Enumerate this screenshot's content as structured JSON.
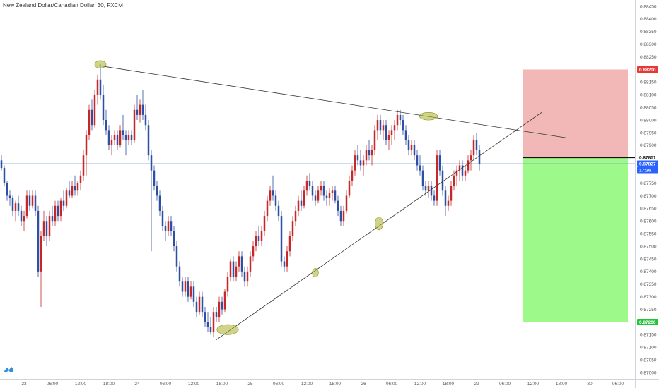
{
  "chart_data": {
    "type": "candlestick",
    "title": "New Zealand Dollar/Canadian Dollar, 30, FXCM",
    "y_axis": {
      "ticks": [
        "0.88450",
        "0.88400",
        "0.88350",
        "0.88300",
        "0.88250",
        "0.88150",
        "0.88100",
        "0.88050",
        "0.88000",
        "0.87950",
        "0.87900",
        "0.87750",
        "0.87700",
        "0.87650",
        "0.87600",
        "0.87550",
        "0.87500",
        "0.87450",
        "0.87400",
        "0.87350",
        "0.87300",
        "0.87250",
        "0.87150",
        "0.87100",
        "0.87050",
        "0.87000"
      ],
      "ylim": [
        0.86975,
        0.88475
      ]
    },
    "x_axis": {
      "ticks": [
        {
          "i": 8,
          "label": "23"
        },
        {
          "i": 18,
          "label": "06:00"
        },
        {
          "i": 28,
          "label": "12:00"
        },
        {
          "i": 38,
          "label": "18:00"
        },
        {
          "i": 48,
          "label": "24"
        },
        {
          "i": 58,
          "label": "06:00"
        },
        {
          "i": 68,
          "label": "12:00"
        },
        {
          "i": 78,
          "label": "18:00"
        },
        {
          "i": 88,
          "label": "25"
        },
        {
          "i": 98,
          "label": "06:00"
        },
        {
          "i": 108,
          "label": "12:00"
        },
        {
          "i": 118,
          "label": "18:00"
        },
        {
          "i": 128,
          "label": "26"
        },
        {
          "i": 138,
          "label": "06:00"
        },
        {
          "i": 148,
          "label": "12:00"
        },
        {
          "i": 158,
          "label": "18:00"
        },
        {
          "i": 168,
          "label": "29"
        },
        {
          "i": 178,
          "label": "06:00"
        },
        {
          "i": 188,
          "label": "12:00"
        },
        {
          "i": 198,
          "label": "18:00"
        },
        {
          "i": 208,
          "label": "30"
        },
        {
          "i": 218,
          "label": "06:00"
        }
      ],
      "xlim": [
        -0.5,
        224
      ]
    },
    "colors": {
      "up": "#c62828",
      "down": "#2e4fa3"
    },
    "last_price": {
      "label": "0.87851",
      "value": 0.87851
    },
    "current_price": {
      "label": "0.87827",
      "value": 0.87827
    },
    "countdown": {
      "label": "17:36"
    },
    "stop_level": {
      "label": "0.88200",
      "value": 0.882,
      "color": "#e53935"
    },
    "target_level": {
      "label": "0.87200",
      "value": 0.872,
      "color": "#22c53a"
    },
    "risk_reward": {
      "x_range": [
        184.5,
        221.5
      ],
      "entry": 0.87851,
      "stop": 0.882,
      "target": 0.872,
      "stop_color": "#f2b8b8",
      "target_color": "#9dfa8a"
    },
    "trendlines": [
      {
        "from": [
          34.5,
          0.88215
        ],
        "to": [
          199.5,
          0.8793
        ],
        "color": "#333333"
      },
      {
        "from": [
          76,
          0.8713
        ],
        "to": [
          191,
          0.8803
        ],
        "color": "#333333"
      }
    ],
    "highlights": [
      {
        "at": [
          35,
          0.8822
        ],
        "rx": 2.0,
        "ry": 0.00015
      },
      {
        "at": [
          151,
          0.88015
        ],
        "rx": 3.2,
        "ry": 0.00015
      },
      {
        "at": [
          133.5,
          0.8759
        ],
        "rx": 1.4,
        "ry": 0.00025
      },
      {
        "at": [
          111,
          0.87395
        ],
        "rx": 1.1,
        "ry": 0.00017
      },
      {
        "at": [
          80,
          0.8717
        ],
        "rx": 3.8,
        "ry": 0.0002
      }
    ],
    "candles": [
      [
        0.8784,
        0.8786,
        0.878,
        0.8781
      ],
      [
        0.8781,
        0.8782,
        0.8774,
        0.8775
      ],
      [
        0.8775,
        0.8776,
        0.8768,
        0.877
      ],
      [
        0.877,
        0.8772,
        0.8766,
        0.8769
      ],
      [
        0.8769,
        0.877,
        0.8762,
        0.8764
      ],
      [
        0.8764,
        0.8768,
        0.876,
        0.8767
      ],
      [
        0.8767,
        0.877,
        0.8762,
        0.8764
      ],
      [
        0.8764,
        0.8766,
        0.8758,
        0.876
      ],
      [
        0.876,
        0.8764,
        0.8756,
        0.8762
      ],
      [
        0.8762,
        0.8772,
        0.8761,
        0.877
      ],
      [
        0.877,
        0.8772,
        0.8764,
        0.8766
      ],
      [
        0.8766,
        0.8772,
        0.8765,
        0.877
      ],
      [
        0.877,
        0.8772,
        0.8762,
        0.8764
      ],
      [
        0.8764,
        0.8766,
        0.8738,
        0.874
      ],
      [
        0.874,
        0.8756,
        0.8726,
        0.8754
      ],
      [
        0.8754,
        0.8764,
        0.8752,
        0.876
      ],
      [
        0.876,
        0.8762,
        0.875,
        0.8754
      ],
      [
        0.8754,
        0.8764,
        0.8752,
        0.8762
      ],
      [
        0.8762,
        0.8766,
        0.8758,
        0.876
      ],
      [
        0.876,
        0.8768,
        0.8758,
        0.8766
      ],
      [
        0.8766,
        0.8768,
        0.876,
        0.8762
      ],
      [
        0.8762,
        0.8769,
        0.876,
        0.8768
      ],
      [
        0.8768,
        0.8772,
        0.8764,
        0.8766
      ],
      [
        0.8766,
        0.8773,
        0.8765,
        0.8772
      ],
      [
        0.8772,
        0.8776,
        0.8769,
        0.877
      ],
      [
        0.877,
        0.8776,
        0.8769,
        0.8774
      ],
      [
        0.8774,
        0.8778,
        0.877,
        0.8772
      ],
      [
        0.8772,
        0.8776,
        0.877,
        0.8775
      ],
      [
        0.8775,
        0.878,
        0.8772,
        0.8778
      ],
      [
        0.8778,
        0.8788,
        0.8776,
        0.8786
      ],
      [
        0.8786,
        0.8796,
        0.8778,
        0.8794
      ],
      [
        0.8794,
        0.8806,
        0.8792,
        0.8804
      ],
      [
        0.8804,
        0.8808,
        0.8796,
        0.8798
      ],
      [
        0.8798,
        0.8812,
        0.8797,
        0.881
      ],
      [
        0.881,
        0.8818,
        0.8806,
        0.8816
      ],
      [
        0.8816,
        0.8822,
        0.8808,
        0.881
      ],
      [
        0.881,
        0.8814,
        0.8798,
        0.88
      ],
      [
        0.88,
        0.8804,
        0.8794,
        0.8796
      ],
      [
        0.8796,
        0.8798,
        0.8788,
        0.879
      ],
      [
        0.879,
        0.8794,
        0.8786,
        0.8792
      ],
      [
        0.8792,
        0.8796,
        0.879,
        0.8794
      ],
      [
        0.8794,
        0.8796,
        0.8788,
        0.879
      ],
      [
        0.879,
        0.8798,
        0.8789,
        0.8796
      ],
      [
        0.8796,
        0.8802,
        0.8792,
        0.8794
      ],
      [
        0.8794,
        0.8796,
        0.8786,
        0.8792
      ],
      [
        0.8792,
        0.8796,
        0.879,
        0.8794
      ],
      [
        0.8794,
        0.8796,
        0.879,
        0.8792
      ],
      [
        0.8792,
        0.8806,
        0.8791,
        0.8804
      ],
      [
        0.8804,
        0.881,
        0.88,
        0.8802
      ],
      [
        0.8802,
        0.8808,
        0.8799,
        0.8806
      ],
      [
        0.8806,
        0.8812,
        0.88,
        0.8802
      ],
      [
        0.8802,
        0.8806,
        0.8796,
        0.8798
      ],
      [
        0.8798,
        0.88,
        0.8784,
        0.8786
      ],
      [
        0.8786,
        0.8788,
        0.8748,
        0.878
      ],
      [
        0.878,
        0.8782,
        0.8772,
        0.8774
      ],
      [
        0.8774,
        0.8776,
        0.8768,
        0.877
      ],
      [
        0.877,
        0.8772,
        0.8762,
        0.8764
      ],
      [
        0.8764,
        0.8766,
        0.8756,
        0.8758
      ],
      [
        0.8758,
        0.876,
        0.8752,
        0.8756
      ],
      [
        0.8756,
        0.8762,
        0.8754,
        0.876
      ],
      [
        0.876,
        0.8762,
        0.8754,
        0.8756
      ],
      [
        0.8756,
        0.8758,
        0.8748,
        0.875
      ],
      [
        0.875,
        0.8752,
        0.874,
        0.8742
      ],
      [
        0.8742,
        0.8744,
        0.8734,
        0.8736
      ],
      [
        0.8736,
        0.8738,
        0.873,
        0.8732
      ],
      [
        0.8732,
        0.8738,
        0.873,
        0.8736
      ],
      [
        0.8736,
        0.8738,
        0.8728,
        0.873
      ],
      [
        0.873,
        0.8736,
        0.8729,
        0.8734
      ],
      [
        0.8734,
        0.8736,
        0.8726,
        0.8728
      ],
      [
        0.8728,
        0.873,
        0.8722,
        0.8724
      ],
      [
        0.8724,
        0.8732,
        0.8723,
        0.873
      ],
      [
        0.873,
        0.8732,
        0.8722,
        0.8724
      ],
      [
        0.8724,
        0.8726,
        0.8718,
        0.872
      ],
      [
        0.872,
        0.8724,
        0.8716,
        0.8718
      ],
      [
        0.8718,
        0.8722,
        0.8715,
        0.8716
      ],
      [
        0.8716,
        0.8726,
        0.8714,
        0.8724
      ],
      [
        0.8724,
        0.8726,
        0.872,
        0.8722
      ],
      [
        0.8722,
        0.873,
        0.872,
        0.8728
      ],
      [
        0.8728,
        0.873,
        0.8723,
        0.8725
      ],
      [
        0.8725,
        0.8733,
        0.8724,
        0.8732
      ],
      [
        0.8732,
        0.874,
        0.873,
        0.8738
      ],
      [
        0.8738,
        0.8745,
        0.8736,
        0.8744
      ],
      [
        0.8744,
        0.8746,
        0.8736,
        0.8738
      ],
      [
        0.8738,
        0.8744,
        0.8736,
        0.8742
      ],
      [
        0.8742,
        0.8748,
        0.874,
        0.8746
      ],
      [
        0.8746,
        0.8748,
        0.8738,
        0.874
      ],
      [
        0.874,
        0.8742,
        0.8734,
        0.8736
      ],
      [
        0.8736,
        0.8742,
        0.8734,
        0.874
      ],
      [
        0.874,
        0.8748,
        0.8738,
        0.8746
      ],
      [
        0.8746,
        0.8752,
        0.8744,
        0.875
      ],
      [
        0.875,
        0.8756,
        0.8748,
        0.8754
      ],
      [
        0.8754,
        0.8758,
        0.875,
        0.8752
      ],
      [
        0.8752,
        0.8758,
        0.875,
        0.8756
      ],
      [
        0.8756,
        0.8764,
        0.8754,
        0.8762
      ],
      [
        0.8762,
        0.877,
        0.876,
        0.8768
      ],
      [
        0.8768,
        0.8774,
        0.8766,
        0.8772
      ],
      [
        0.8772,
        0.8778,
        0.8768,
        0.877
      ],
      [
        0.877,
        0.8772,
        0.8764,
        0.8766
      ],
      [
        0.8766,
        0.8768,
        0.876,
        0.8762
      ],
      [
        0.8762,
        0.8764,
        0.8742,
        0.8744
      ],
      [
        0.8744,
        0.8746,
        0.874,
        0.8742
      ],
      [
        0.8742,
        0.875,
        0.874,
        0.8748
      ],
      [
        0.8748,
        0.8756,
        0.8746,
        0.8754
      ],
      [
        0.8754,
        0.8762,
        0.8752,
        0.876
      ],
      [
        0.876,
        0.8766,
        0.8758,
        0.8764
      ],
      [
        0.8764,
        0.877,
        0.8762,
        0.8768
      ],
      [
        0.8768,
        0.8772,
        0.8764,
        0.8766
      ],
      [
        0.8766,
        0.8774,
        0.8765,
        0.8772
      ],
      [
        0.8772,
        0.8778,
        0.877,
        0.8776
      ],
      [
        0.8776,
        0.8779,
        0.8772,
        0.8774
      ],
      [
        0.8774,
        0.8776,
        0.8768,
        0.877
      ],
      [
        0.877,
        0.8772,
        0.8766,
        0.8768
      ],
      [
        0.8768,
        0.8774,
        0.8767,
        0.8772
      ],
      [
        0.8772,
        0.8776,
        0.877,
        0.8774
      ],
      [
        0.8774,
        0.8776,
        0.8768,
        0.877
      ],
      [
        0.877,
        0.8772,
        0.8766,
        0.8769
      ],
      [
        0.8769,
        0.8773,
        0.8766,
        0.8771
      ],
      [
        0.8771,
        0.8774,
        0.8768,
        0.8772
      ],
      [
        0.8772,
        0.8774,
        0.8767,
        0.8768
      ],
      [
        0.8768,
        0.877,
        0.8762,
        0.8764
      ],
      [
        0.8764,
        0.8766,
        0.8758,
        0.876
      ],
      [
        0.876,
        0.8766,
        0.8758,
        0.8764
      ],
      [
        0.8764,
        0.8772,
        0.8763,
        0.877
      ],
      [
        0.877,
        0.8778,
        0.8769,
        0.8776
      ],
      [
        0.8776,
        0.8782,
        0.8774,
        0.878
      ],
      [
        0.878,
        0.8788,
        0.8778,
        0.8786
      ],
      [
        0.8786,
        0.879,
        0.8782,
        0.8784
      ],
      [
        0.8784,
        0.8788,
        0.878,
        0.8782
      ],
      [
        0.8782,
        0.8786,
        0.8778,
        0.8784
      ],
      [
        0.8784,
        0.879,
        0.8782,
        0.8788
      ],
      [
        0.8788,
        0.8792,
        0.8784,
        0.8786
      ],
      [
        0.8786,
        0.879,
        0.8782,
        0.8788
      ],
      [
        0.8788,
        0.8798,
        0.8786,
        0.8796
      ],
      [
        0.8796,
        0.8802,
        0.8792,
        0.88
      ],
      [
        0.88,
        0.8802,
        0.8794,
        0.8796
      ],
      [
        0.8796,
        0.88,
        0.8792,
        0.8798
      ],
      [
        0.8798,
        0.88,
        0.879,
        0.8792
      ],
      [
        0.8792,
        0.8796,
        0.8788,
        0.8794
      ],
      [
        0.8794,
        0.8798,
        0.879,
        0.8796
      ],
      [
        0.8796,
        0.88,
        0.8792,
        0.8798
      ],
      [
        0.8798,
        0.8804,
        0.8796,
        0.8802
      ],
      [
        0.8802,
        0.8804,
        0.8798,
        0.88
      ],
      [
        0.88,
        0.8802,
        0.8794,
        0.8796
      ],
      [
        0.8796,
        0.8798,
        0.879,
        0.8792
      ],
      [
        0.8792,
        0.8794,
        0.8786,
        0.8788
      ],
      [
        0.8788,
        0.8792,
        0.8786,
        0.879
      ],
      [
        0.879,
        0.8792,
        0.8784,
        0.8786
      ],
      [
        0.8786,
        0.8788,
        0.878,
        0.8782
      ],
      [
        0.8782,
        0.8786,
        0.8778,
        0.878
      ],
      [
        0.878,
        0.8782,
        0.8772,
        0.8774
      ],
      [
        0.8774,
        0.8776,
        0.877,
        0.8772
      ],
      [
        0.8772,
        0.8776,
        0.8769,
        0.8774
      ],
      [
        0.8774,
        0.8776,
        0.8768,
        0.877
      ],
      [
        0.877,
        0.8772,
        0.8766,
        0.8768
      ],
      [
        0.8768,
        0.8788,
        0.8766,
        0.8786
      ],
      [
        0.8786,
        0.8788,
        0.8778,
        0.878
      ],
      [
        0.878,
        0.8782,
        0.877,
        0.8772
      ],
      [
        0.8772,
        0.8774,
        0.8762,
        0.8766
      ],
      [
        0.8766,
        0.877,
        0.8764,
        0.8768
      ],
      [
        0.8768,
        0.8776,
        0.8766,
        0.8774
      ],
      [
        0.8774,
        0.878,
        0.8772,
        0.8778
      ],
      [
        0.8778,
        0.8782,
        0.8774,
        0.878
      ],
      [
        0.878,
        0.8784,
        0.8776,
        0.8782
      ],
      [
        0.8782,
        0.8784,
        0.8776,
        0.8778
      ],
      [
        0.8778,
        0.8782,
        0.8776,
        0.878
      ],
      [
        0.878,
        0.8786,
        0.8779,
        0.8784
      ],
      [
        0.8784,
        0.8788,
        0.878,
        0.8786
      ],
      [
        0.8786,
        0.8794,
        0.8784,
        0.8792
      ],
      [
        0.8792,
        0.8795,
        0.8786,
        0.8788
      ],
      [
        0.8788,
        0.879,
        0.878,
        0.87827
      ]
    ]
  }
}
